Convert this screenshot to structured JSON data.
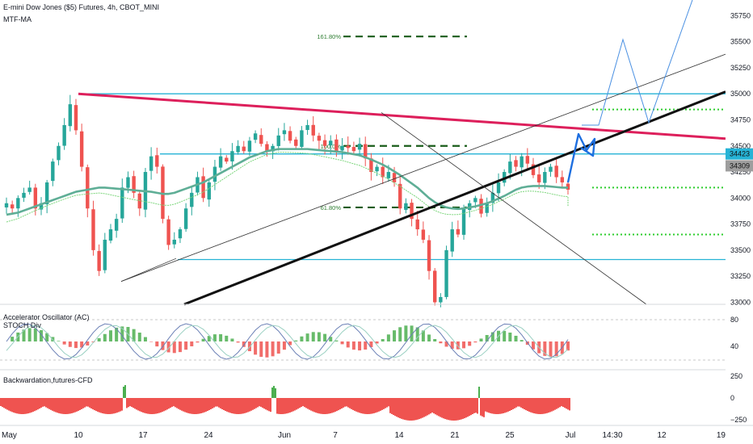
{
  "header": {
    "symbol": "E-mini Dow Jones ($5) Futures, 4h, CBOT_MINI",
    "indicator": "MTF-MA"
  },
  "panes": {
    "oscillator_title": "Accelerator Oscillator (AC)",
    "oscillator_subtitle": "STOCH Div",
    "cfd_title": "Backwardation,futures-CFD"
  },
  "colors": {
    "up": "#26a69a",
    "down": "#ef5350",
    "resistance": "#dd1f5b",
    "support": "#26b3d6",
    "trend": "#111111",
    "ma": "#5fae96",
    "projection": "#1e6fe0",
    "target_dash": "#1a5c1a",
    "target_dot": "#2ecc2e",
    "osc_red": "#ef5350",
    "osc_green": "#4caf50"
  },
  "chart_data": [
    {
      "type": "candlestick",
      "title": "E-mini Dow Jones ($5) Futures, 4h, CBOT_MINI",
      "timeframe": "4h",
      "y_range": [
        32980,
        35900
      ],
      "y_ticks": [
        {
          "value": 35750,
          "label": "35750"
        },
        {
          "value": 35500,
          "label": "35500"
        },
        {
          "value": 35250,
          "label": "35250"
        },
        {
          "value": 35000,
          "label": "35000"
        },
        {
          "value": 34750,
          "label": "34750"
        },
        {
          "value": 34500,
          "label": "34500"
        },
        {
          "value": 34250,
          "label": "34250"
        },
        {
          "value": 34000,
          "label": "34000"
        },
        {
          "value": 33750,
          "label": "33750"
        },
        {
          "value": 33500,
          "label": "33500"
        },
        {
          "value": 33250,
          "label": "33250"
        },
        {
          "value": 33000,
          "label": "33000"
        }
      ],
      "price_badges": [
        {
          "value": 34423,
          "label": "34423",
          "color": "#26b3d6"
        },
        {
          "value": 34309,
          "label": "34309",
          "color": "#9e9e9e"
        }
      ],
      "x_ticks": [
        "May",
        "10",
        "17",
        "24",
        "Jun",
        "7",
        "14",
        "21",
        "25",
        "Jul",
        "14:30",
        "12",
        "19"
      ],
      "fib_levels": [
        {
          "label": "161.80%",
          "value": 35550
        },
        {
          "label": "100.0%",
          "value": 34500
        },
        {
          "label": "61.80%",
          "value": 33910
        }
      ],
      "horizontal_levels": {
        "support_resistance": [
          35000,
          34423,
          33410
        ],
        "green_targets": [
          34850,
          34100,
          33650
        ]
      },
      "annotations": {
        "resistance_line": {
          "from": [
            "10",
            35000
          ],
          "to": [
            "19",
            34570
          ]
        },
        "trend_line": {
          "from": [
            "10",
            32950
          ],
          "to": [
            "19",
            35020
          ]
        }
      },
      "closes": [
        33950,
        33900,
        34000,
        34050,
        34100,
        33900,
        33950,
        34150,
        34350,
        34500,
        34700,
        34900,
        34650,
        34300,
        33900,
        33500,
        33300,
        33600,
        33700,
        33800,
        34100,
        34200,
        34050,
        33900,
        34250,
        34400,
        34300,
        33800,
        33550,
        33600,
        33700,
        33900,
        34050,
        34200,
        34000,
        34150,
        34300,
        34400,
        34350,
        34450,
        34500,
        34450,
        34550,
        34620,
        34520,
        34450,
        34500,
        34600,
        34650,
        34550,
        34500,
        34650,
        34700,
        34600,
        34550,
        34500,
        34550,
        34450,
        34500,
        34480,
        34450,
        34520,
        34380,
        34250,
        34300,
        34200,
        34250,
        34150,
        33900,
        33950,
        33800,
        33700,
        33600,
        33300,
        33000,
        33050,
        33500,
        33700,
        33650,
        33900,
        33950,
        34000,
        33850,
        33950,
        34050,
        34150,
        34250,
        34350,
        34300,
        34400,
        34330,
        34220,
        34150,
        34250,
        34300,
        34200,
        34150,
        34080
      ],
      "ma_slow": [
        33840,
        33850,
        33860,
        33880,
        33900,
        33920,
        33940,
        33960,
        33980,
        34000,
        34020,
        34040,
        34060,
        34070,
        34080,
        34090,
        34100,
        34100,
        34095,
        34090,
        34085,
        34080,
        34075,
        34070,
        34065,
        34060,
        34050,
        34040,
        34040,
        34050,
        34070,
        34090,
        34110,
        34130,
        34150,
        34180,
        34210,
        34240,
        34270,
        34300,
        34330,
        34360,
        34390,
        34410,
        34430,
        34450,
        34460,
        34470,
        34470,
        34470,
        34470,
        34470,
        34470,
        34465,
        34460,
        34455,
        34450,
        34445,
        34440,
        34430,
        34420,
        34410,
        34390,
        34370,
        34345,
        34320,
        34290,
        34255,
        34220,
        34180,
        34140,
        34100,
        34050,
        34000,
        33960,
        33930,
        33910,
        33900,
        33895,
        33900,
        33910,
        33920,
        33935,
        33950,
        33970,
        33995,
        34020,
        34050,
        34080,
        34100,
        34110,
        34115,
        34115,
        34115,
        34110,
        34105,
        34100,
        34100
      ],
      "oscillator_pane": {
        "y_ticks": [
          {
            "value": 80,
            "label": "80"
          },
          {
            "value": 40,
            "label": "40"
          }
        ]
      },
      "cfd_pane": {
        "y_ticks": [
          {
            "value": 250,
            "label": "250"
          },
          {
            "value": 0,
            "label": "0"
          },
          {
            "value": -250,
            "label": "−250"
          }
        ]
      }
    }
  ]
}
